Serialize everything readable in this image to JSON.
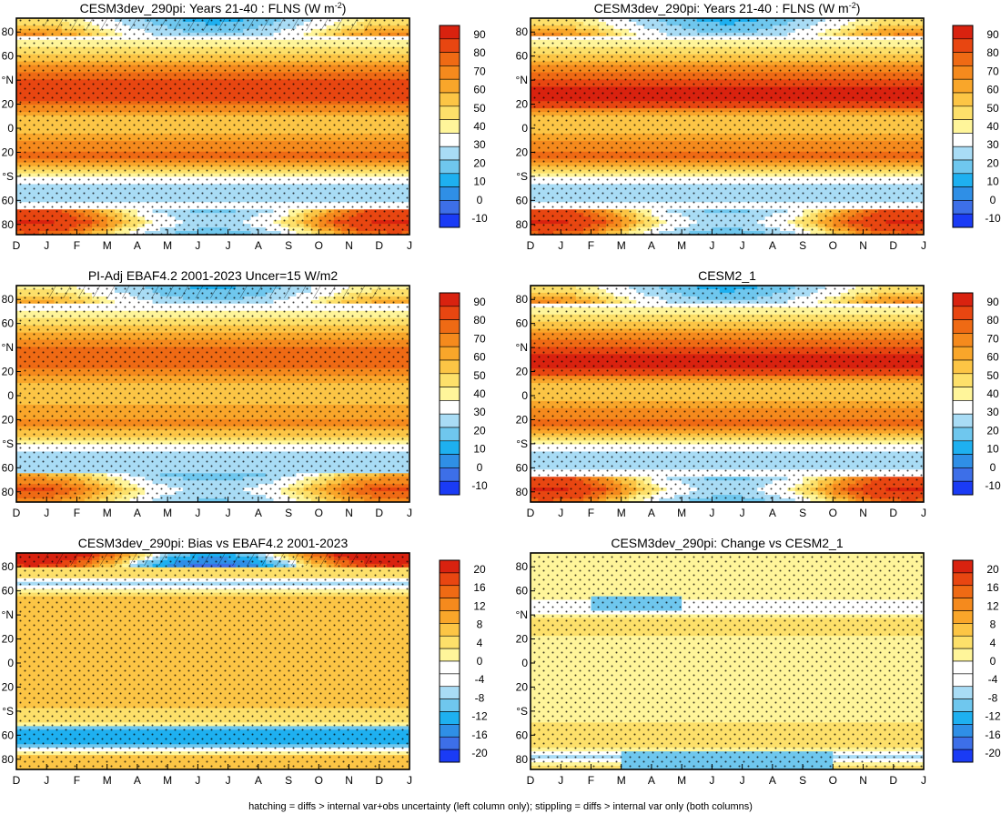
{
  "footnote": "hatching = diffs > internal var+obs uncertainty (left column only); stippling = diffs > internal var only (both columns)",
  "colors": {
    "abs_scale": [
      "#1a3bf5",
      "#3d6fe8",
      "#2f8fe6",
      "#1eb0f0",
      "#6fc7ee",
      "#a9dcf5",
      "#ffffff",
      "#fff59a",
      "#fde06a",
      "#fcc545",
      "#f9a62a",
      "#f58a1d",
      "#ef6a14",
      "#e84611",
      "#d9220f"
    ],
    "diff_scale": [
      "#1a3bf5",
      "#3d6fe8",
      "#2f8fe6",
      "#1eb0f0",
      "#6fc7ee",
      "#a9dcf5",
      "#ffffff",
      "#ffffff",
      "#fff59a",
      "#fde06a",
      "#fcc545",
      "#f9a62a",
      "#f58a1d",
      "#ef6a14",
      "#e84611",
      "#d9220f"
    ]
  },
  "chart_data": [
    {
      "type": "heatmap",
      "title": "CESM3dev_290pi: Years 21-40 : FLNS (W m",
      "title_sup": "-2",
      "title_tail": ")",
      "x_tick_labels": [
        "D",
        "J",
        "F",
        "M",
        "A",
        "M",
        "J",
        "J",
        "A",
        "S",
        "O",
        "N",
        "D",
        "J"
      ],
      "y_tick_labels": [
        "80",
        "60",
        "°N",
        "20",
        "0",
        "20",
        "°S",
        "60",
        "80"
      ],
      "colorbar_labels": [
        "90",
        "80",
        "70",
        "60",
        "50",
        "40",
        "30",
        "20",
        "10",
        "0",
        "-10"
      ],
      "colorbar_scale": "abs",
      "field": "abs_model",
      "hatching": true
    },
    {
      "type": "heatmap",
      "title": "CESM3dev_290pi: Years 21-40 : FLNS (W m",
      "title_sup": "-2",
      "title_tail": ")",
      "x_tick_labels": [
        "D",
        "J",
        "F",
        "M",
        "A",
        "M",
        "J",
        "J",
        "A",
        "S",
        "O",
        "N",
        "D",
        "J"
      ],
      "y_tick_labels": [
        "80",
        "60",
        "°N",
        "20",
        "0",
        "20",
        "°S",
        "60",
        "80"
      ],
      "colorbar_labels": [
        "90",
        "80",
        "70",
        "60",
        "50",
        "40",
        "30",
        "20",
        "10",
        "0",
        "-10"
      ],
      "colorbar_scale": "abs",
      "field": "abs_model",
      "hatching": false
    },
    {
      "type": "heatmap",
      "title": "PI-Adj EBAF4.2 2001-2023 Uncer=15 W/m2",
      "x_tick_labels": [
        "D",
        "J",
        "F",
        "M",
        "A",
        "M",
        "J",
        "J",
        "A",
        "S",
        "O",
        "N",
        "D",
        "J"
      ],
      "y_tick_labels": [
        "80",
        "60",
        "°N",
        "20",
        "0",
        "20",
        "°S",
        "60",
        "80"
      ],
      "colorbar_labels": [
        "90",
        "80",
        "70",
        "60",
        "50",
        "40",
        "30",
        "20",
        "10",
        "0",
        "-10"
      ],
      "colorbar_scale": "abs",
      "field": "abs_obs",
      "hatching": true
    },
    {
      "type": "heatmap",
      "title": "CESM2_1",
      "x_tick_labels": [
        "D",
        "J",
        "F",
        "M",
        "A",
        "M",
        "J",
        "J",
        "A",
        "S",
        "O",
        "N",
        "D",
        "J"
      ],
      "y_tick_labels": [
        "80",
        "60",
        "°N",
        "20",
        "0",
        "20",
        "°S",
        "60",
        "80"
      ],
      "colorbar_labels": [
        "90",
        "80",
        "70",
        "60",
        "50",
        "40",
        "30",
        "20",
        "10",
        "0",
        "-10"
      ],
      "colorbar_scale": "abs",
      "field": "abs_cesm2",
      "hatching": false
    },
    {
      "type": "heatmap",
      "title": "CESM3dev_290pi: Bias vs EBAF4.2 2001-2023",
      "x_tick_labels": [
        "D",
        "J",
        "F",
        "M",
        "A",
        "M",
        "J",
        "J",
        "A",
        "S",
        "O",
        "N",
        "D",
        "J"
      ],
      "y_tick_labels": [
        "80",
        "60",
        "°N",
        "20",
        "0",
        "20",
        "°S",
        "60",
        "80"
      ],
      "colorbar_labels": [
        "20",
        "16",
        "12",
        "8",
        "4",
        "0",
        "-4",
        "-8",
        "-12",
        "-16",
        "-20"
      ],
      "colorbar_scale": "diff",
      "field": "bias",
      "hatching": true
    },
    {
      "type": "heatmap",
      "title": "CESM3dev_290pi: Change vs CESM2_1",
      "x_tick_labels": [
        "D",
        "J",
        "F",
        "M",
        "A",
        "M",
        "J",
        "J",
        "A",
        "S",
        "O",
        "N",
        "D",
        "J"
      ],
      "y_tick_labels": [
        "80",
        "60",
        "°N",
        "20",
        "0",
        "20",
        "°S",
        "60",
        "80"
      ],
      "colorbar_labels": [
        "20",
        "16",
        "12",
        "8",
        "4",
        "0",
        "-4",
        "-8",
        "-12",
        "-16",
        "-20"
      ],
      "colorbar_scale": "diff",
      "field": "change",
      "hatching": false
    }
  ]
}
